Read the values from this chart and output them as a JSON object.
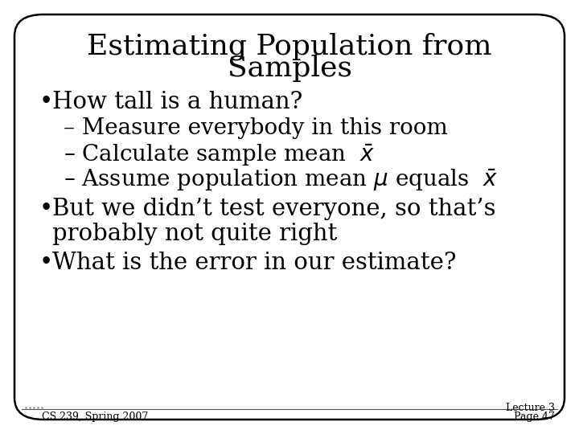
{
  "title_line1": "Estimating Population from",
  "title_line2": "Samples",
  "bullet1": "How tall is a human?",
  "sub1": "– Measure everybody in this room",
  "sub2_pre": "– Calculate sample mean  $\\bar{x}$",
  "sub3_pre": "– Assume population mean $\\mu$ equals  $\\bar{x}$",
  "bullet2_line1": "But we didn’t test everyone, so that’s",
  "bullet2_line2": "probably not quite right",
  "bullet3": "What is the error in our estimate?",
  "footer_left": "CS 239, Spring 2007",
  "footer_right_line1": "Lecture 3",
  "footer_right_line2": "Page 47",
  "bg_color": "#ffffff",
  "text_color": "#000000",
  "border_color": "#000000",
  "title_fontsize": 26,
  "body_fontsize": 21,
  "sub_fontsize": 20,
  "footer_fontsize": 9
}
